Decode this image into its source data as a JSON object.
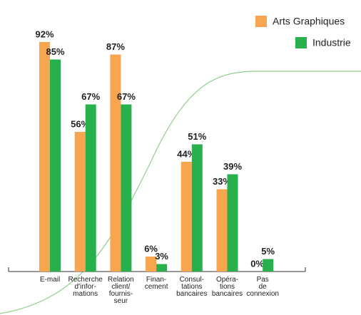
{
  "chart_data": {
    "type": "bar",
    "categories": [
      "E-mail",
      "Recherche\nd'infor-\nmations",
      "Relation\nclient/\nfournis-\nseur",
      "Finan-\ncement",
      "Consul-\ntations\nbancaires",
      "Opéra-\ntions\nbancaires",
      "Pas\nde\nconnexion"
    ],
    "series": [
      {
        "name": "Arts Graphiques",
        "color": "#f7a54f",
        "values": [
          92,
          56,
          87,
          6,
          44,
          33,
          0
        ],
        "value_labels": [
          "92%",
          "56%",
          "87%",
          "6%",
          "44%",
          "33%",
          "0%"
        ]
      },
      {
        "name": "Industrie",
        "color": "#27b04b",
        "values": [
          85,
          67,
          67,
          3,
          51,
          39,
          5
        ],
        "value_labels": [
          "85%",
          "67%",
          "67%",
          "3%",
          "51%",
          "39%",
          "5%"
        ]
      }
    ]
  }
}
